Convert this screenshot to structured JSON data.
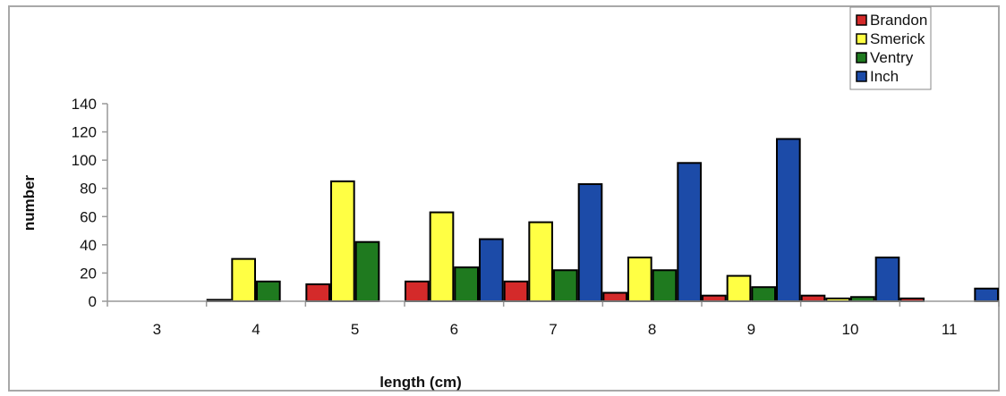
{
  "chart_data": {
    "type": "bar",
    "categories": [
      "3",
      "4",
      "5",
      "6",
      "7",
      "8",
      "9",
      "10",
      "11"
    ],
    "series": [
      {
        "name": "Brandon",
        "color": "#d42a2a",
        "values": [
          0,
          1,
          12,
          14,
          14,
          6,
          4,
          4,
          2
        ]
      },
      {
        "name": "Smerick",
        "color": "#ffff44",
        "values": [
          0,
          30,
          85,
          63,
          56,
          31,
          18,
          2,
          0
        ]
      },
      {
        "name": "Ventry",
        "color": "#1f7a1f",
        "values": [
          0,
          14,
          42,
          24,
          22,
          22,
          10,
          3,
          0
        ]
      },
      {
        "name": "Inch",
        "color": "#1c4ba8",
        "values": [
          0,
          0,
          0,
          44,
          83,
          98,
          115,
          31,
          9
        ]
      }
    ],
    "xlabel": "length (cm)",
    "ylabel": "number",
    "ylim": [
      0,
      140
    ],
    "yticks": [
      0,
      20,
      40,
      60,
      80,
      100,
      120,
      140
    ],
    "grid": false,
    "legend_position": "top-right"
  }
}
